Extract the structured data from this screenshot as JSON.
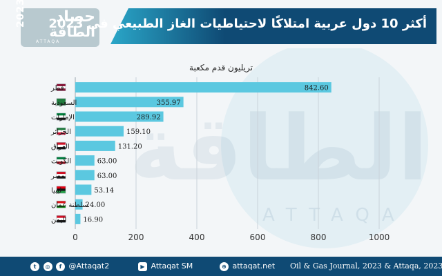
{
  "header": {
    "title": "أكثر 10 دول عربية امتلاكًا لاحتياطيات الغاز الطبيعي في 2023",
    "logo_main": "حصاد",
    "logo_sub": "الطاقة",
    "logo_year": "2023",
    "logo_latin": "ATTAQA",
    "logo_color": "#b8c9cf",
    "banner_color": "#0f4a74",
    "banner_accent": "#2aa6c8"
  },
  "watermark_text": "الطاقة",
  "watermark_latin": "ATTAQA",
  "chart_data": {
    "type": "bar",
    "orientation": "horizontal",
    "title": "تريليون قدم مكعبة",
    "categories": [
      "قطر",
      "السعودية",
      "الإمارات",
      "الجزائر",
      "العراق",
      "الكويت",
      "مصر",
      "ليبيا",
      "سلطنة عمان",
      "اليمن"
    ],
    "flag_icons": [
      "qatar-flag-icon",
      "saudi-flag-icon",
      "uae-flag-icon",
      "algeria-flag-icon",
      "iraq-flag-icon",
      "kuwait-flag-icon",
      "egypt-flag-icon",
      "libya-flag-icon",
      "oman-flag-icon",
      "yemen-flag-icon"
    ],
    "values": [
      842.6,
      355.97,
      289.92,
      159.1,
      131.2,
      63.0,
      63.0,
      53.14,
      24.0,
      16.9
    ],
    "value_labels": [
      "842.60",
      "355.97",
      "289.92",
      "159.10",
      "131.20",
      "63.00",
      "63.00",
      "53.14",
      "24.00",
      "16.90"
    ],
    "xlim": [
      0,
      1000
    ],
    "xticks": [
      "0",
      "200",
      "400",
      "600",
      "800",
      "1000"
    ],
    "grid": true,
    "bar_color": "#5bc8e0"
  },
  "footer": {
    "social_handle": "@Attaqat2",
    "youtube": "Attaqat SM",
    "website": "attaqat.net",
    "source": "Oil & Gas Journal, 2023 & Attaqa, 2023",
    "icons": [
      "twitter-icon",
      "instagram-icon",
      "facebook-icon",
      "youtube-icon",
      "globe-icon"
    ]
  }
}
